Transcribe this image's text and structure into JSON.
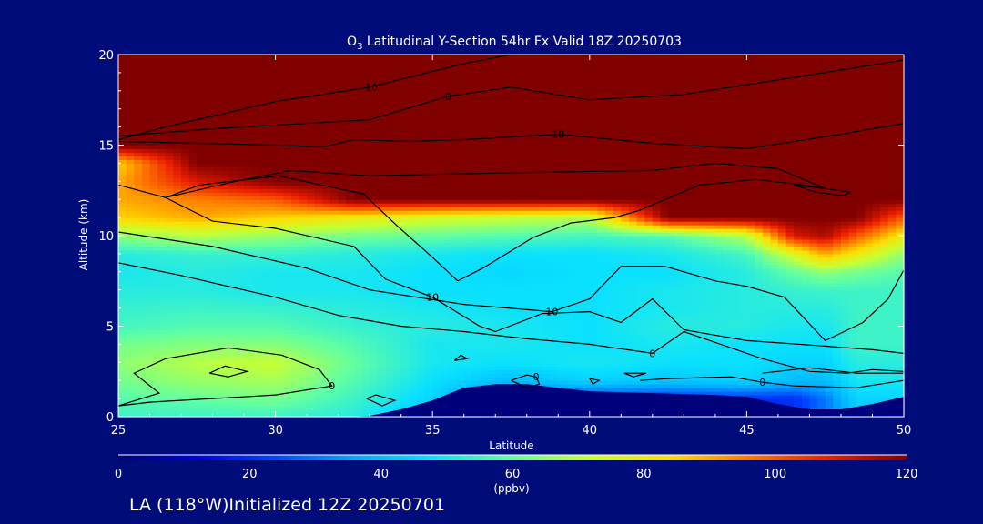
{
  "chart_data": {
    "type": "heatmap",
    "title_prefix": "O",
    "title_sub": "3",
    "title_rest": " Latitudinal Y-Section 54hr  Fx Valid 18Z 20250703",
    "xlabel": "Latitude",
    "ylabel": "Altitude (km)",
    "xlim": [
      25,
      50
    ],
    "ylim": [
      0,
      20
    ],
    "x_ticks": [
      "25",
      "30",
      "35",
      "40",
      "45",
      "50"
    ],
    "y_ticks": [
      "0",
      "5",
      "10",
      "15",
      "20"
    ],
    "colorbar": {
      "range": [
        0,
        120
      ],
      "ticks": [
        "0",
        "20",
        "40",
        "60",
        "80",
        "100",
        "120"
      ],
      "unit": "(ppbv)"
    },
    "contour_labels": [
      "-10",
      "0",
      "10",
      "10",
      "-10",
      "10",
      "10",
      "0",
      "0",
      "0",
      "0",
      "0"
    ],
    "ozone_grid": {
      "x": [
        25,
        27.5,
        30,
        32.5,
        35,
        37.5,
        40,
        42.5,
        45,
        46.5,
        47.5,
        48.5,
        50
      ],
      "y": [
        0,
        1,
        2,
        3,
        4,
        5,
        6,
        7,
        8,
        9,
        10,
        11,
        12,
        13,
        14,
        15,
        16,
        17,
        18,
        19,
        20
      ],
      "values": [
        [
          55,
          55,
          55,
          52,
          40,
          20,
          20,
          20,
          15,
          20,
          30,
          40,
          40
        ],
        [
          58,
          60,
          62,
          55,
          45,
          20,
          20,
          20,
          20,
          20,
          30,
          45,
          45
        ],
        [
          62,
          66,
          68,
          58,
          48,
          40,
          45,
          42,
          45,
          40,
          40,
          50,
          50
        ],
        [
          65,
          70,
          72,
          60,
          50,
          48,
          50,
          48,
          48,
          45,
          45,
          52,
          52
        ],
        [
          62,
          64,
          64,
          58,
          50,
          50,
          48,
          50,
          48,
          48,
          48,
          55,
          55
        ],
        [
          56,
          58,
          58,
          54,
          52,
          50,
          48,
          52,
          52,
          50,
          50,
          55,
          55
        ],
        [
          54,
          55,
          54,
          52,
          50,
          48,
          48,
          50,
          52,
          52,
          52,
          55,
          55
        ],
        [
          52,
          52,
          50,
          50,
          48,
          48,
          48,
          50,
          52,
          54,
          55,
          55,
          55
        ],
        [
          50,
          52,
          50,
          50,
          48,
          46,
          48,
          48,
          52,
          60,
          65,
          62,
          58
        ],
        [
          52,
          54,
          54,
          52,
          50,
          48,
          48,
          50,
          56,
          75,
          90,
          80,
          65
        ],
        [
          65,
          70,
          66,
          62,
          60,
          58,
          56,
          58,
          70,
          110,
          115,
          100,
          80
        ],
        [
          85,
          90,
          85,
          80,
          75,
          72,
          70,
          120,
          120,
          120,
          120,
          120,
          100
        ],
        [
          90,
          95,
          100,
          120,
          120,
          120,
          120,
          120,
          120,
          120,
          120,
          120,
          120
        ],
        [
          90,
          110,
          120,
          120,
          120,
          120,
          120,
          120,
          120,
          120,
          120,
          120,
          120
        ],
        [
          85,
          120,
          120,
          120,
          120,
          120,
          120,
          120,
          120,
          120,
          120,
          120,
          120
        ],
        [
          120,
          120,
          120,
          120,
          120,
          120,
          120,
          120,
          120,
          120,
          120,
          120,
          120
        ],
        [
          120,
          120,
          120,
          120,
          120,
          120,
          120,
          120,
          120,
          120,
          120,
          120,
          120
        ],
        [
          120,
          120,
          120,
          120,
          120,
          120,
          120,
          120,
          120,
          120,
          120,
          120,
          120
        ],
        [
          120,
          120,
          120,
          120,
          120,
          120,
          120,
          120,
          120,
          120,
          120,
          120,
          120
        ],
        [
          120,
          120,
          120,
          120,
          120,
          120,
          120,
          120,
          120,
          120,
          120,
          120,
          120
        ],
        [
          120,
          120,
          120,
          120,
          120,
          120,
          120,
          120,
          120,
          120,
          120,
          120,
          120
        ]
      ]
    },
    "terrain_km": {
      "x": [
        25,
        32,
        33,
        34,
        35,
        36,
        37,
        38,
        39,
        40,
        42,
        44,
        45,
        46,
        47,
        48,
        49,
        50
      ],
      "y": [
        0,
        0,
        0.05,
        0.4,
        0.9,
        1.6,
        1.8,
        1.8,
        1.6,
        1.4,
        1.3,
        1.2,
        1.1,
        0.7,
        0.4,
        0.4,
        0.7,
        1.1
      ]
    },
    "contours": [
      {
        "label": "-10",
        "points": [
          [
            25,
            15.3
          ],
          [
            26.5,
            16.0
          ],
          [
            30,
            17.4
          ],
          [
            33,
            18.2
          ],
          [
            36,
            19.5
          ],
          [
            37.5,
            20.0
          ]
        ]
      },
      {
        "label": "0",
        "points": [
          [
            25,
            15.5
          ],
          [
            28,
            15.9
          ],
          [
            33,
            16.4
          ],
          [
            35.5,
            17.7
          ],
          [
            37.5,
            18.2
          ],
          [
            40,
            17.5
          ],
          [
            43,
            17.8
          ],
          [
            46,
            18.6
          ],
          [
            50,
            19.7
          ]
        ]
      },
      {
        "label": "10",
        "points": [
          [
            25,
            15.2
          ],
          [
            30,
            15.0
          ],
          [
            31.5,
            14.9
          ],
          [
            32.5,
            15.3
          ],
          [
            34.2,
            15.2
          ],
          [
            36,
            15.3
          ],
          [
            39,
            15.6
          ],
          [
            42,
            15.1
          ],
          [
            45,
            14.8
          ],
          [
            48,
            15.6
          ],
          [
            50,
            16.2
          ]
        ]
      },
      {
        "label": "10",
        "points": [
          [
            25,
            12.8
          ],
          [
            26.5,
            12.1
          ],
          [
            28,
            10.8
          ],
          [
            30,
            10.4
          ],
          [
            32.5,
            9.4
          ],
          [
            33.5,
            7.6
          ],
          [
            35,
            6.6
          ],
          [
            36.5,
            5.0
          ],
          [
            37,
            4.7
          ],
          [
            38.5,
            5.7
          ],
          [
            40,
            5.8
          ],
          [
            41,
            5.2
          ],
          [
            42,
            6.5
          ],
          [
            43,
            4.8
          ],
          [
            45,
            4.2
          ],
          [
            47.5,
            3.9
          ],
          [
            49,
            3.7
          ],
          [
            50,
            3.5
          ]
        ]
      },
      {
        "label": "",
        "points": [
          [
            26.5,
            12.1
          ],
          [
            29,
            13.1
          ],
          [
            30.5,
            13.6
          ],
          [
            33,
            13.3
          ],
          [
            35.5,
            13.4
          ],
          [
            38.5,
            13.5
          ],
          [
            42,
            13.6
          ],
          [
            44,
            14.0
          ],
          [
            46,
            13.7
          ],
          [
            47.5,
            12.6
          ],
          [
            46.8,
            12.8
          ],
          [
            45.3,
            13.1
          ],
          [
            43.5,
            12.8
          ],
          [
            41.6,
            11.4
          ],
          [
            40.8,
            11.0
          ],
          [
            39.4,
            10.7
          ],
          [
            38.2,
            9.9
          ],
          [
            36.6,
            8.2
          ],
          [
            35.8,
            7.5
          ],
          [
            35,
            8.8
          ],
          [
            33.9,
            10.5
          ],
          [
            32.8,
            12.3
          ],
          [
            30.1,
            13.3
          ],
          [
            27.6,
            12.8
          ],
          [
            26.5,
            12.1
          ]
        ]
      },
      {
        "label": "10",
        "points": [
          [
            25,
            10.2
          ],
          [
            28,
            9.4
          ],
          [
            31,
            8.2
          ],
          [
            33,
            7.0
          ],
          [
            36,
            6.2
          ],
          [
            38.8,
            5.8
          ],
          [
            40,
            6.5
          ],
          [
            41,
            8.3
          ],
          [
            42.4,
            8.3
          ],
          [
            44,
            7.5
          ],
          [
            45,
            7.2
          ],
          [
            46.2,
            6.6
          ],
          [
            47.5,
            4.2
          ],
          [
            48.7,
            5.2
          ],
          [
            49.5,
            6.5
          ],
          [
            50,
            8.1
          ]
        ]
      },
      {
        "label": "0",
        "points": [
          [
            25,
            8.5
          ],
          [
            27,
            7.8
          ],
          [
            30,
            6.6
          ],
          [
            32,
            5.6
          ],
          [
            34,
            5.0
          ],
          [
            36,
            4.7
          ],
          [
            38,
            4.3
          ],
          [
            40,
            4.0
          ],
          [
            42,
            3.5
          ],
          [
            43,
            4.7
          ],
          [
            44,
            4.1
          ],
          [
            45.5,
            3.2
          ],
          [
            47,
            2.5
          ],
          [
            48.2,
            2.4
          ],
          [
            49,
            2.6
          ],
          [
            50,
            2.5
          ]
        ]
      },
      {
        "label": "0",
        "points": [
          [
            25,
            0.6
          ],
          [
            26,
            0.8
          ],
          [
            30,
            1.2
          ],
          [
            31.8,
            1.7
          ],
          [
            31.4,
            2.6
          ],
          [
            30.2,
            3.4
          ],
          [
            28.5,
            3.8
          ],
          [
            26.5,
            3.2
          ],
          [
            25.5,
            2.4
          ],
          [
            26.3,
            1.3
          ],
          [
            25,
            0.6
          ]
        ]
      },
      {
        "label": "",
        "points": [
          [
            27.9,
            2.4
          ],
          [
            28.5,
            2.2
          ],
          [
            29.1,
            2.5
          ],
          [
            28.4,
            2.8
          ],
          [
            27.9,
            2.4
          ]
        ]
      },
      {
        "label": "",
        "points": [
          [
            32.9,
            1.0
          ],
          [
            33.4,
            0.6
          ],
          [
            33.8,
            0.9
          ],
          [
            33.2,
            1.2
          ],
          [
            32.9,
            1.0
          ]
        ]
      },
      {
        "label": "",
        "points": [
          [
            35.7,
            3.1
          ],
          [
            36.1,
            3.2
          ],
          [
            35.9,
            3.4
          ],
          [
            35.7,
            3.1
          ]
        ]
      },
      {
        "label": "0",
        "points": [
          [
            37.5,
            2.0
          ],
          [
            38.0,
            2.3
          ],
          [
            38.3,
            2.2
          ],
          [
            38.4,
            1.8
          ],
          [
            38.0,
            1.6
          ],
          [
            37.5,
            2.0
          ]
        ]
      },
      {
        "label": "",
        "points": [
          [
            40,
            2.1
          ],
          [
            40.3,
            2.0
          ],
          [
            40.1,
            1.8
          ],
          [
            40,
            2.1
          ]
        ]
      },
      {
        "label": "",
        "points": [
          [
            41.1,
            2.4
          ],
          [
            41.8,
            2.4
          ],
          [
            41.4,
            2.2
          ],
          [
            41.1,
            2.4
          ]
        ]
      },
      {
        "label": "0",
        "points": [
          [
            41.6,
            2.0
          ],
          [
            42.5,
            2.1
          ],
          [
            44.5,
            2.2
          ],
          [
            45.5,
            1.9
          ],
          [
            46.5,
            1.7
          ],
          [
            48.5,
            1.6
          ],
          [
            50,
            2.0
          ]
        ]
      },
      {
        "label": "",
        "points": [
          [
            45.5,
            2.4
          ],
          [
            47,
            2.7
          ],
          [
            48.5,
            2.4
          ],
          [
            50,
            2.4
          ]
        ]
      },
      {
        "label": "",
        "points": [
          [
            46.5,
            12.8
          ],
          [
            47.2,
            12.4
          ],
          [
            48.1,
            12.2
          ],
          [
            48.3,
            12.4
          ],
          [
            47.5,
            12.6
          ],
          [
            46.5,
            12.8
          ]
        ]
      }
    ]
  },
  "footer_text": "LA (118°W)Initialized 12Z 20250701"
}
